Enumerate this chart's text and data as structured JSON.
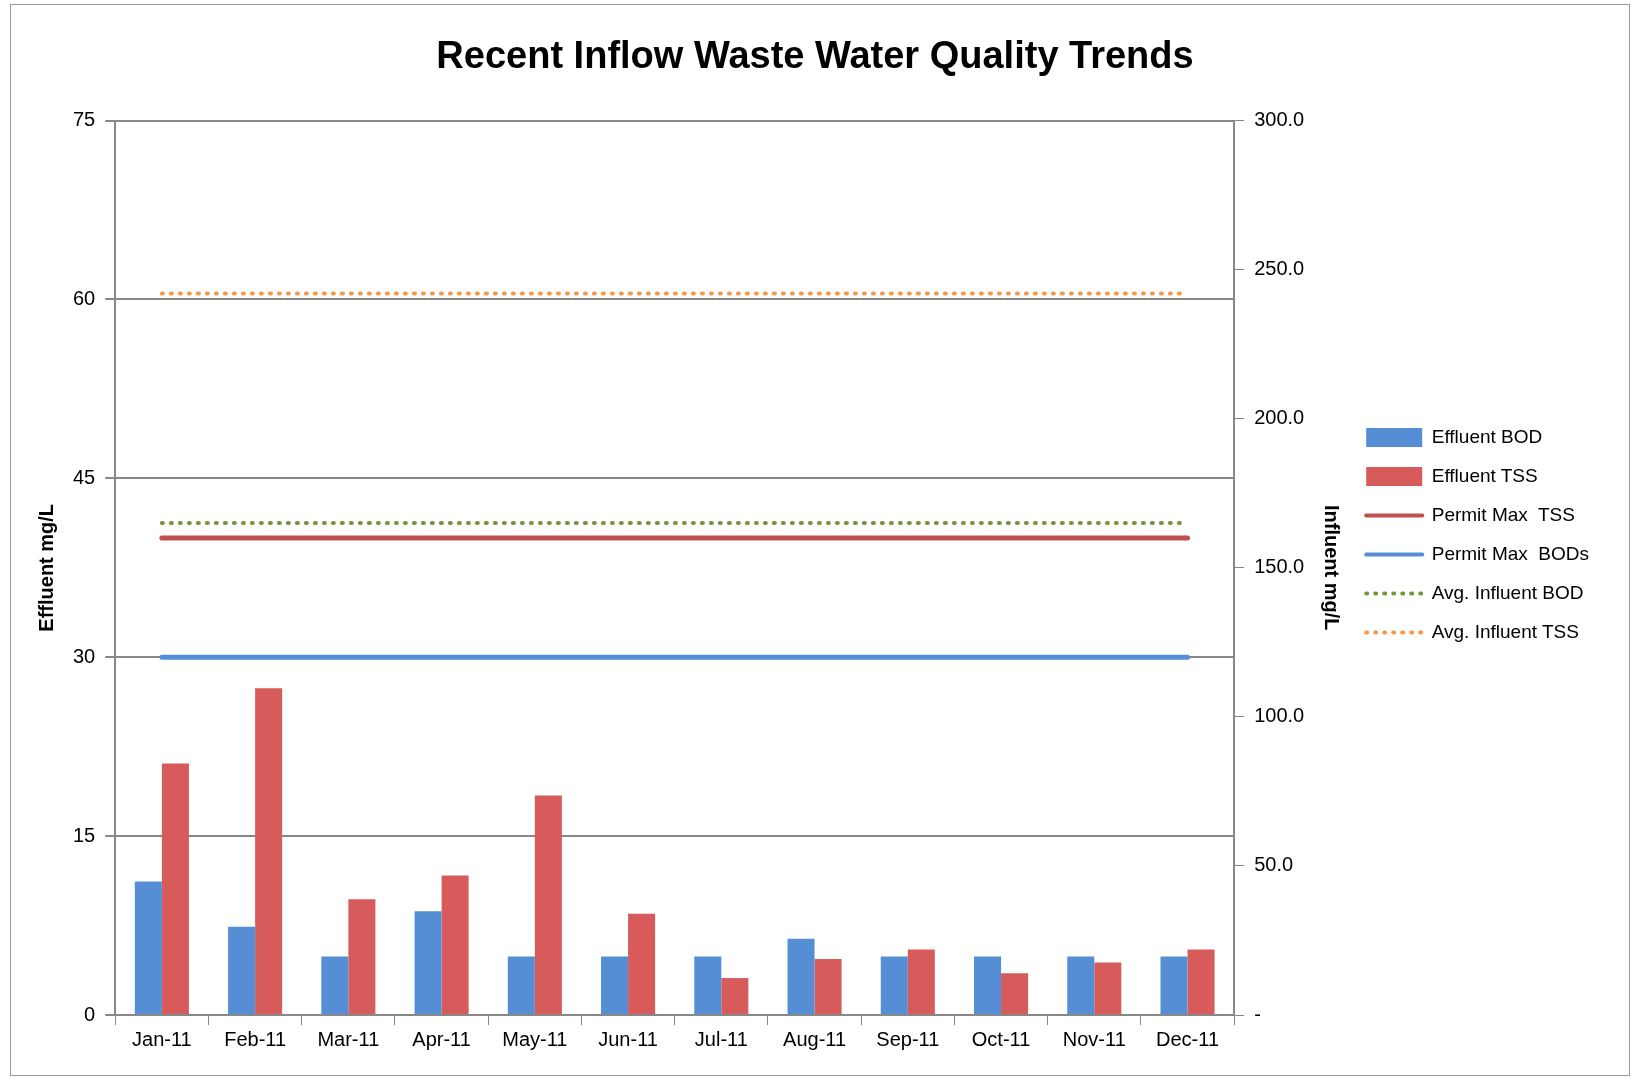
{
  "chart_data": {
    "type": "bar",
    "title": "Recent Inflow Waste Water Quality Trends",
    "ylabel": "Effluent mg/L",
    "y2label": "Influent mg/L",
    "categories": [
      "Jan-11",
      "Feb-11",
      "Mar-11",
      "Apr-11",
      "May-11",
      "Jun-11",
      "Jul-11",
      "Aug-11",
      "Sep-11",
      "Oct-11",
      "Nov-11",
      "Dec-11"
    ],
    "series": [
      {
        "name": "Effluent BOD",
        "color": "#558ed5",
        "values": [
          11.2,
          7.4,
          4.9,
          8.7,
          4.9,
          4.9,
          4.9,
          6.4,
          4.9,
          4.9,
          4.9,
          4.9
        ]
      },
      {
        "name": "Effluent TSS",
        "color": "#d75b5b",
        "values": [
          21.1,
          27.4,
          9.7,
          11.7,
          18.4,
          8.5,
          3.1,
          4.7,
          5.5,
          3.5,
          4.4,
          5.5
        ]
      },
      {
        "name": "Permit Max  TSS",
        "type": "line",
        "color": "#c0504d",
        "values": [
          40,
          40,
          40,
          40,
          40,
          40,
          40,
          40,
          40,
          40,
          40,
          40
        ]
      },
      {
        "name": "Permit Max  BODs",
        "type": "line",
        "color": "#558ed5",
        "values": [
          30,
          30,
          30,
          30,
          30,
          30,
          30,
          30,
          30,
          30,
          30,
          30
        ]
      },
      {
        "name": "Avg. Influent BOD",
        "type": "line",
        "axis": "y2",
        "line_style": "dotted",
        "color": "#77933c",
        "values": [
          165,
          165,
          165,
          165,
          165,
          165,
          165,
          165,
          165,
          165,
          165,
          165
        ]
      },
      {
        "name": "Avg. Influent TSS",
        "type": "line",
        "axis": "y2",
        "line_style": "dotted",
        "color": "#f79646",
        "values": [
          242,
          242,
          242,
          242,
          242,
          242,
          242,
          242,
          242,
          242,
          242,
          242
        ]
      }
    ],
    "ylim": [
      0,
      75
    ],
    "yticks": [
      0,
      15,
      30,
      45,
      60,
      75
    ],
    "y2lim": [
      0,
      300
    ],
    "y2ticks": [
      {
        "value": 0,
        "label": "-"
      },
      {
        "value": 50,
        "label": "50.0"
      },
      {
        "value": 100,
        "label": "100.0"
      },
      {
        "value": 150,
        "label": "150.0"
      },
      {
        "value": 200,
        "label": "200.0"
      },
      {
        "value": 250,
        "label": "250.0"
      },
      {
        "value": 300,
        "label": "300.0"
      }
    ],
    "grid": "y",
    "legend": "right",
    "marker": "none"
  }
}
